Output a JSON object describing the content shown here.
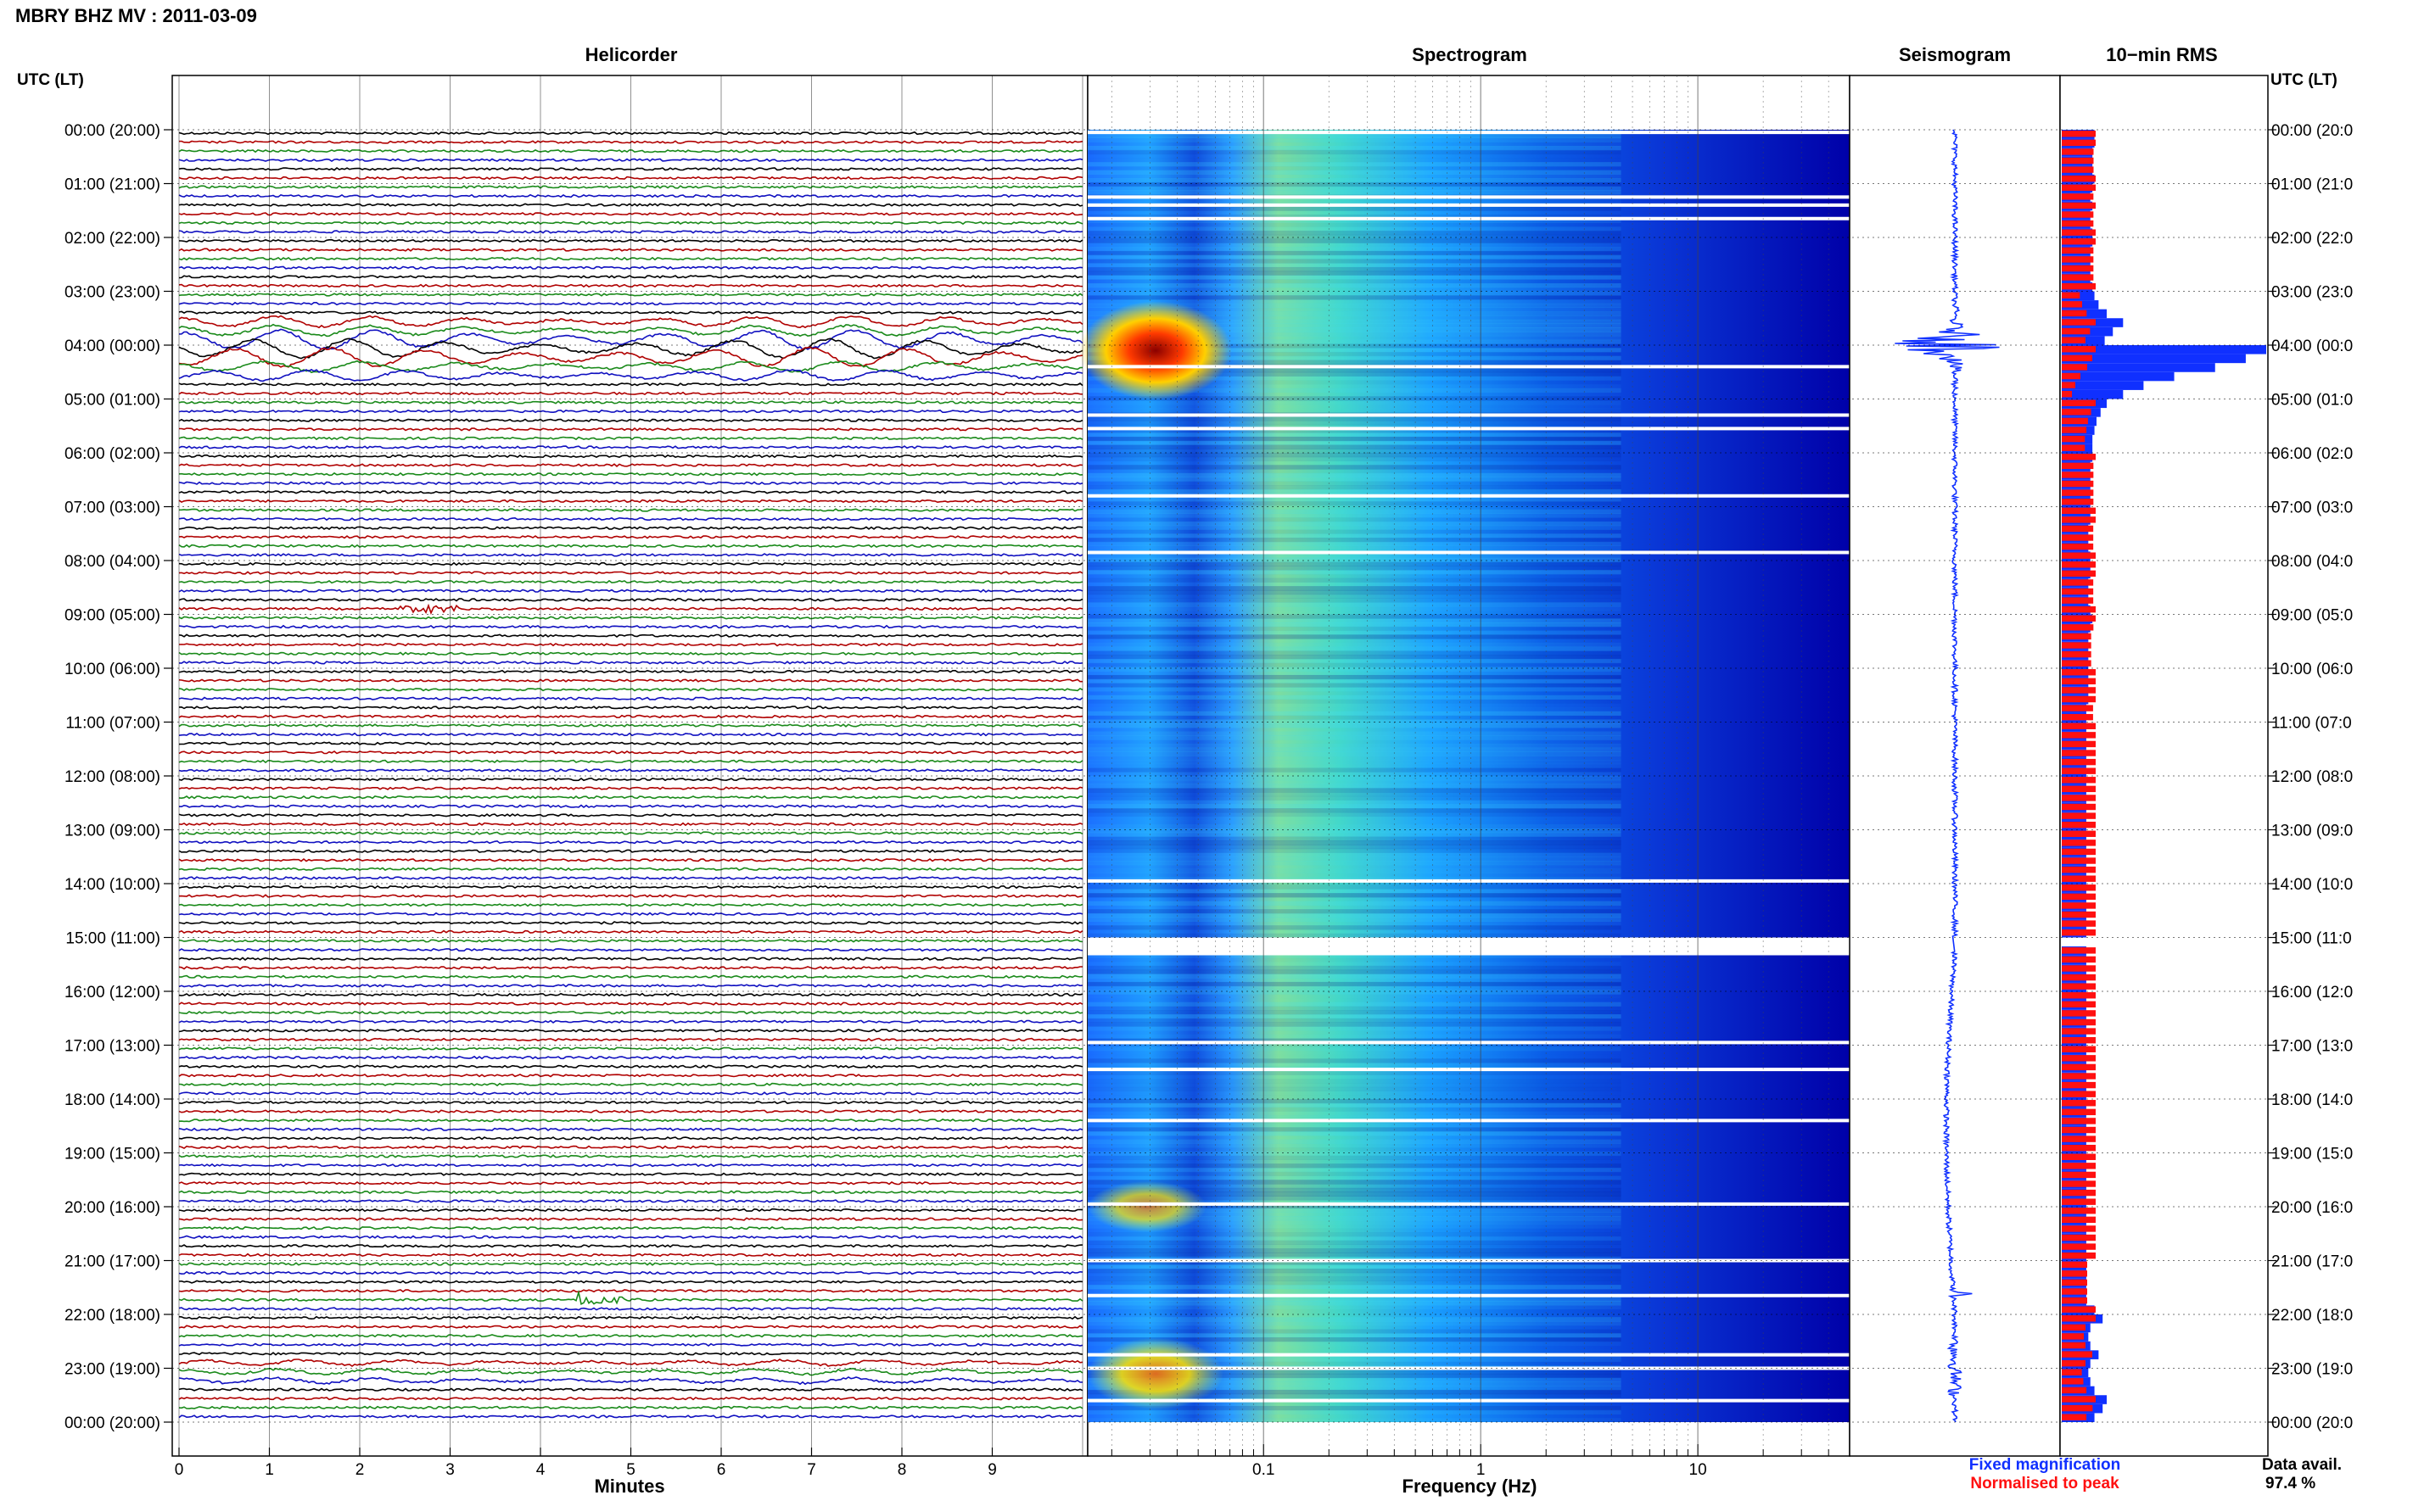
{
  "page_title": "MBRY BHZ MV : 2011-03-09",
  "panel_titles": {
    "helicorder": "Helicorder",
    "spectrogram": "Spectrogram",
    "seismogram": "Seismogram",
    "rms": "10−min RMS"
  },
  "left_axis_title": "UTC (LT)",
  "right_axis_title": "UTC (LT)",
  "hour_labels": [
    "00:00 (20:00)",
    "01:00 (21:00)",
    "02:00 (22:00)",
    "03:00 (23:00)",
    "04:00 (00:00)",
    "05:00 (01:00)",
    "06:00 (02:00)",
    "07:00 (03:00)",
    "08:00 (04:00)",
    "09:00 (05:00)",
    "10:00 (06:00)",
    "11:00 (07:00)",
    "12:00 (08:00)",
    "13:00 (09:00)",
    "14:00 (10:00)",
    "15:00 (11:00)",
    "16:00 (12:00)",
    "17:00 (13:00)",
    "18:00 (14:00)",
    "19:00 (15:00)",
    "20:00 (16:00)",
    "21:00 (17:00)",
    "22:00 (18:00)",
    "23:00 (19:00)",
    "00:00 (20:00)"
  ],
  "right_hour_labels": [
    "00:00 (20:0",
    "01:00 (21:0",
    "02:00 (22:0",
    "03:00 (23:0",
    "04:00 (00:0",
    "05:00 (01:0",
    "06:00 (02:0",
    "07:00 (03:0",
    "08:00 (04:0",
    "09:00 (05:0",
    "10:00 (06:0",
    "11:00 (07:0",
    "12:00 (08:0",
    "13:00 (09:0",
    "14:00 (10:0",
    "15:00 (11:0",
    "16:00 (12:0",
    "17:00 (13:0",
    "18:00 (14:0",
    "19:00 (15:0",
    "20:00 (16:0",
    "21:00 (17:0",
    "22:00 (18:0",
    "23:00 (19:0",
    "00:00 (20:0"
  ],
  "minutes_ticks": [
    "0",
    "1",
    "2",
    "3",
    "4",
    "5",
    "6",
    "7",
    "8",
    "9"
  ],
  "minutes_label": "Minutes",
  "frequency_ticks": [
    "0.1",
    "1",
    "10"
  ],
  "frequency_label": "Frequency (Hz)",
  "legend": {
    "fixed": "Fixed magnification",
    "normalised": "Normalised to peak",
    "data_avail_label": "Data avail.",
    "data_avail_value": "97.4 %"
  },
  "colors": {
    "trace_cycle": [
      "#000000",
      "#b00000",
      "#1a8a1a",
      "#1010c0"
    ],
    "fixed_bar": "#1030ff",
    "normalised_bar": "#ff1010",
    "spectrogram_low": "#00008c",
    "spectrogram_high": "#7f0000"
  },
  "chart_data": [
    {
      "type": "line",
      "title": "Helicorder",
      "xlabel": "Minutes",
      "ylabel": "UTC (LT)",
      "xlim": [
        0,
        10
      ],
      "row_length_minutes": 10,
      "rows": 144,
      "description_events": [
        {
          "utc_start": "03:30",
          "utc_end": "04:30",
          "note": "large long-period oscillations"
        },
        {
          "utc": "08:50",
          "minute": 3.0,
          "note": "small event"
        },
        {
          "utc": "21:40",
          "minute": 5.0,
          "note": "local event"
        }
      ]
    },
    {
      "type": "heatmap",
      "title": "Spectrogram",
      "xlabel": "Frequency (Hz)",
      "xscale": "log",
      "xlim": [
        0.02,
        50
      ],
      "xticks": [
        0.1,
        1,
        10
      ],
      "gaps_utc": [
        "15:00"
      ]
    },
    {
      "type": "bar",
      "title": "10−min RMS",
      "series": [
        {
          "name": "Fixed magnification",
          "color": "#1030ff"
        },
        {
          "name": "Normalised to peak",
          "color": "#ff1010"
        }
      ],
      "rms_10min": [
        0.16,
        0.16,
        0.15,
        0.15,
        0.15,
        0.16,
        0.15,
        0.14,
        0.15,
        0.14,
        0.14,
        0.15,
        0.15,
        0.14,
        0.14,
        0.14,
        0.14,
        0.15,
        0.16,
        0.18,
        0.22,
        0.3,
        0.25,
        0.21,
        1.0,
        0.9,
        0.75,
        0.55,
        0.4,
        0.3,
        0.22,
        0.19,
        0.17,
        0.16,
        0.15,
        0.15,
        0.15,
        0.14,
        0.14,
        0.14,
        0.14,
        0.14,
        0.14,
        0.14,
        0.13,
        0.13,
        0.13,
        0.14,
        0.14,
        0.14,
        0.13,
        0.13,
        0.13,
        0.14,
        0.15,
        0.14,
        0.13,
        0.13,
        0.13,
        0.13,
        0.13,
        0.13,
        0.13,
        0.13,
        0.12,
        0.12,
        0.12,
        0.12,
        0.12,
        0.12,
        0.12,
        0.12,
        0.12,
        0.12,
        0.12,
        0.12,
        0.12,
        0.12,
        0.12,
        0.12,
        0.12,
        0.12,
        0.12,
        0.12,
        0.12,
        0.12,
        0.12,
        0.12,
        0.12,
        0.12,
        null,
        0.12,
        0.12,
        0.12,
        0.12,
        0.12,
        0.12,
        0.12,
        0.12,
        0.12,
        0.12,
        0.12,
        0.12,
        0.12,
        0.12,
        0.12,
        0.12,
        0.12,
        0.12,
        0.12,
        0.12,
        0.12,
        0.12,
        0.12,
        0.12,
        0.12,
        0.12,
        0.12,
        0.12,
        0.12,
        0.12,
        0.12,
        0.12,
        0.12,
        0.12,
        0.12,
        0.12,
        0.12,
        0.12,
        0.12,
        0.12,
        0.16,
        0.2,
        0.14,
        0.13,
        0.14,
        0.18,
        0.14,
        0.13,
        0.14,
        0.16,
        0.22,
        0.2,
        0.16
      ]
    }
  ]
}
